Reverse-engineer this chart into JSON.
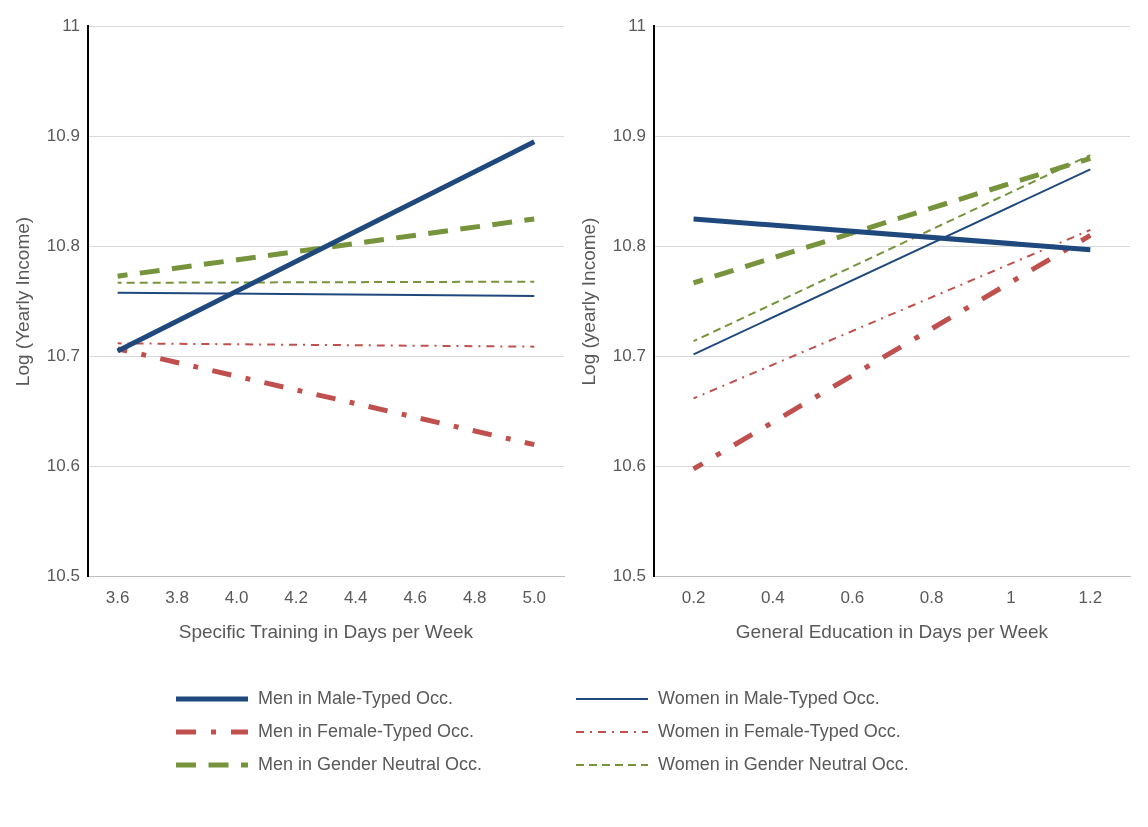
{
  "chart_data": [
    {
      "type": "line",
      "xlabel": "Specific Training in Days per Week",
      "ylabel": "Log (Yearly Income)",
      "categories": [
        "3.6",
        "3.8",
        "4.0",
        "4.2",
        "4.4",
        "4.6",
        "4.8",
        "5.0"
      ],
      "ylim": [
        10.5,
        11
      ],
      "yticks": [
        10.5,
        10.6,
        10.7,
        10.8,
        10.9,
        11
      ],
      "grid": "y",
      "legend": "bottom",
      "marker": "none",
      "series": [
        {
          "name": "Men in Male-Typed Occ.",
          "color": "#1f497d",
          "line_style": "solid",
          "values": [
            10.705,
            null,
            null,
            null,
            null,
            null,
            null,
            10.895
          ]
        },
        {
          "name": "Women in Male-Typed Occ.",
          "color": "#1f497d",
          "line_style": "solid",
          "values": [
            10.758,
            null,
            null,
            null,
            null,
            null,
            null,
            10.755
          ]
        },
        {
          "name": "Men in Female-Typed Occ.",
          "color": "#c0504d",
          "line_style": "dotted",
          "values": [
            10.707,
            null,
            null,
            null,
            null,
            null,
            null,
            10.62
          ]
        },
        {
          "name": "Women in Female-Typed Occ.",
          "color": "#c0504d",
          "line_style": "dotted",
          "values": [
            10.712,
            null,
            null,
            null,
            null,
            null,
            null,
            10.709
          ]
        },
        {
          "name": "Men in Gender Neutral Occ.",
          "color": "#77933c",
          "line_style": "dashed",
          "values": [
            10.773,
            null,
            null,
            null,
            null,
            null,
            null,
            10.825
          ]
        },
        {
          "name": "Women in Gender Neutral Occ.",
          "color": "#77933c",
          "line_style": "dashed",
          "values": [
            10.767,
            null,
            null,
            null,
            null,
            null,
            null,
            10.768
          ]
        }
      ]
    },
    {
      "type": "line",
      "xlabel": "General Education in Days per Week",
      "ylabel": "Log (yearly Income)",
      "categories": [
        "0.2",
        "0.4",
        "0.6",
        "0.8",
        "1",
        "1.2"
      ],
      "ylim": [
        10.5,
        11
      ],
      "yticks": [
        10.5,
        10.6,
        10.7,
        10.8,
        10.9,
        11
      ],
      "grid": "y",
      "legend": "bottom",
      "marker": "none",
      "series": [
        {
          "name": "Men in Male-Typed Occ.",
          "color": "#1f497d",
          "line_style": "solid",
          "values": [
            10.825,
            null,
            null,
            null,
            null,
            10.797
          ]
        },
        {
          "name": "Women in Male-Typed Occ.",
          "color": "#1f497d",
          "line_style": "solid",
          "values": [
            10.702,
            null,
            null,
            null,
            null,
            10.87
          ]
        },
        {
          "name": "Men in Female-Typed Occ.",
          "color": "#c0504d",
          "line_style": "dotted",
          "values": [
            10.598,
            null,
            null,
            null,
            null,
            10.81
          ]
        },
        {
          "name": "Women in Female-Typed Occ.",
          "color": "#c0504d",
          "line_style": "dotted",
          "values": [
            10.662,
            null,
            null,
            null,
            null,
            10.815
          ]
        },
        {
          "name": "Men in Gender Neutral Occ.",
          "color": "#77933c",
          "line_style": "dashed",
          "values": [
            10.767,
            null,
            null,
            null,
            null,
            10.88
          ]
        },
        {
          "name": "Women in Gender Neutral Occ.",
          "color": "#77933c",
          "line_style": "dashed",
          "values": [
            10.714,
            null,
            null,
            null,
            null,
            10.883
          ]
        }
      ]
    }
  ]
}
